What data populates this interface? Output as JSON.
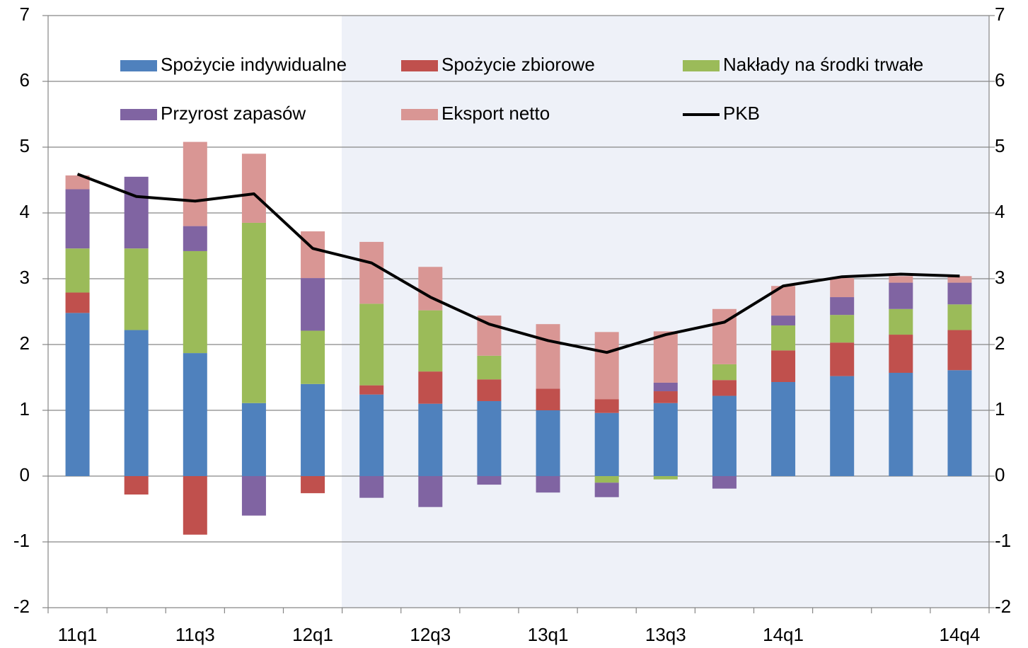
{
  "chart_data": {
    "type": "bar",
    "stacked": true,
    "categories": [
      "11q1",
      null,
      "11q3",
      null,
      "12q1",
      null,
      "12q3",
      null,
      "13q1",
      null,
      "13q3",
      null,
      "14q1",
      null,
      null,
      "14q4"
    ],
    "series": [
      {
        "name": "Spożycie indywidualne",
        "color": "#4f81bd",
        "values": [
          2.48,
          2.22,
          1.87,
          1.11,
          1.4,
          1.24,
          1.1,
          1.14,
          1.0,
          0.96,
          1.11,
          1.22,
          1.43,
          1.52,
          1.57,
          1.61
        ]
      },
      {
        "name": "Spożycie zbiorowe",
        "color": "#c0504d",
        "values": [
          0.31,
          -0.28,
          -0.89,
          0,
          -0.26,
          0.14,
          0.49,
          0.33,
          0.33,
          0.21,
          0.18,
          0.24,
          0.48,
          0.51,
          0.58,
          0.61
        ]
      },
      {
        "name": "Nakłady na środki trwałe",
        "color": "#9bbb59",
        "values": [
          0.67,
          1.24,
          1.55,
          2.74,
          0.81,
          1.24,
          0.93,
          0.36,
          0,
          -0.1,
          -0.05,
          0.24,
          0.38,
          0.42,
          0.39,
          0.39
        ]
      },
      {
        "name": "Przyrost zapasów",
        "color": "#8064a2",
        "values": [
          0.9,
          1.09,
          0.38,
          -0.6,
          0.8,
          -0.33,
          -0.47,
          -0.13,
          -0.25,
          -0.22,
          0.13,
          -0.19,
          0.15,
          0.27,
          0.4,
          0.33
        ]
      },
      {
        "name": "Eksport netto",
        "color": "#d99694",
        "values": [
          0.21,
          0,
          1.28,
          1.05,
          0.71,
          0.94,
          0.66,
          0.61,
          0.98,
          1.02,
          0.78,
          0.84,
          0.45,
          0.29,
          0.1,
          0.1
        ]
      },
      {
        "name": "PKB",
        "type": "line",
        "color": "#000000",
        "values": [
          4.59,
          4.25,
          4.18,
          4.29,
          3.46,
          3.24,
          2.72,
          2.31,
          2.06,
          1.88,
          2.15,
          2.34,
          2.89,
          3.03,
          3.07,
          3.04
        ]
      }
    ],
    "ylim": [
      -2,
      7
    ],
    "yticks": [
      -2,
      -1,
      0,
      1,
      2,
      3,
      4,
      5,
      6,
      7
    ],
    "y2lim": [
      -2,
      7
    ],
    "y2ticks": [
      -2,
      -1,
      0,
      1,
      2,
      3,
      4,
      5,
      6,
      7
    ],
    "grid": true
  }
}
